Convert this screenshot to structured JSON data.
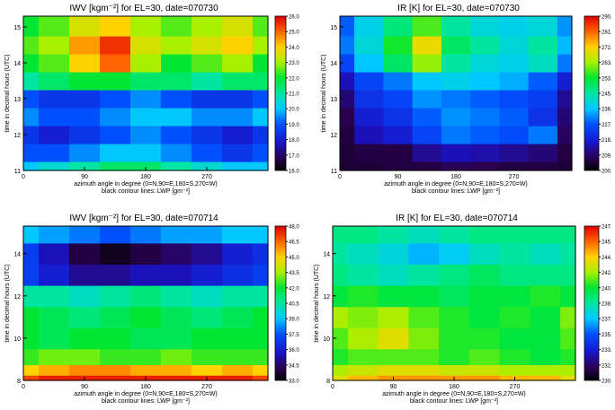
{
  "charts": [
    {
      "title": "IWV [kgm⁻²] for EL=30, date=070730",
      "xlabel": "azimuth angle in degree (0=N,90=E,180=S,270=W)",
      "xlabel2": "black contour lines: LWP [gm⁻²]",
      "ylabel": "time in decimal hours (UTC)",
      "xticks": [
        "0",
        "90",
        "180",
        "270"
      ],
      "yticks": [
        "11",
        "12",
        "13",
        "14",
        "15"
      ],
      "colorbar_ticks": [
        "16.0",
        "17.0",
        "18.0",
        "19.0",
        "20.0",
        "21.0",
        "22.0",
        "23.0",
        "24.0",
        "25.0",
        "26.0"
      ]
    },
    {
      "title": "IR [K] for EL=30, date=070730",
      "xlabel": "azimuth angle in degree (0=N,90=E,180=S,270=W)",
      "xlabel2": "black contour lines: LWP [gm⁻²]",
      "ylabel": "time in decimal hours (UTC)",
      "xticks": [
        "0",
        "90",
        "180",
        "270"
      ],
      "yticks": [
        "11",
        "12",
        "13",
        "14",
        "15"
      ],
      "colorbar_ticks": [
        "200.",
        "209.",
        "218.",
        "227.",
        "236.",
        "245.",
        "253.",
        "263.",
        "272.",
        "281.",
        "290."
      ]
    },
    {
      "title": "IWV [kgm⁻²] for EL=30, date=070714",
      "xlabel": "azimuth angle in degree (0=N,90=E,180=S,270=W)",
      "xlabel2": "black contour lines: LWP [gm⁻²]",
      "ylabel": "time in decimal hours (UTC)",
      "xticks": [
        "0",
        "90",
        "180",
        "270"
      ],
      "yticks": [
        "8",
        "10",
        "12",
        "14"
      ],
      "colorbar_ticks": [
        "33.0",
        "34.5",
        "36.0",
        "37.5",
        "39.0",
        "40.5",
        "42.0",
        "43.5",
        "45.0",
        "46.5",
        "48.0"
      ]
    },
    {
      "title": "IR [K] for EL=30, date=070714",
      "xlabel": "azimuth angle in degree (0=N,90=E,180=S,270=W)",
      "xlabel2": "black contour lines: LWP [gm⁻²]",
      "ylabel": "time in decimal hours (UTC)",
      "xticks": [
        "0",
        "90",
        "180",
        "270"
      ],
      "yticks": [
        "8",
        "10",
        "12",
        "14"
      ],
      "colorbar_ticks": [
        "230.",
        "232.",
        "233.",
        "235.",
        "237.",
        "238.",
        "240.",
        "242.",
        "244.",
        "245.",
        "247."
      ]
    }
  ],
  "chart_data": [
    {
      "type": "heatmap",
      "title": "IWV [kgm⁻²] for EL=30, date=070730",
      "xlabel": "azimuth angle in degree (0=N,90=E,180=S,270=W)",
      "ylabel": "time in decimal hours (UTC)",
      "xlim": [
        0,
        360
      ],
      "ylim": [
        11,
        15.3
      ],
      "colorbar_range": [
        16.0,
        26.0
      ],
      "x": [
        0,
        45,
        90,
        135,
        180,
        225,
        270,
        315,
        360
      ],
      "y": [
        11,
        11.5,
        12,
        12.5,
        13,
        13.5,
        14,
        14.5,
        15
      ],
      "z": [
        [
          20,
          20.5,
          21,
          21.5,
          21.5,
          21,
          20.5,
          20,
          20
        ],
        [
          19,
          19,
          19.5,
          20,
          20,
          19.5,
          19,
          18.5,
          19
        ],
        [
          18.5,
          18,
          18.5,
          19,
          19.5,
          19,
          18.5,
          18,
          18.5
        ],
        [
          19.5,
          19,
          19,
          19.5,
          20,
          20,
          19.5,
          19.5,
          20
        ],
        [
          19,
          18.5,
          18.5,
          19,
          19.5,
          19,
          18.5,
          18.5,
          19
        ],
        [
          21,
          21.5,
          22,
          22,
          21.5,
          21.5,
          21,
          21.5,
          21.5
        ],
        [
          22,
          22.5,
          24,
          25,
          23,
          22,
          22.5,
          23,
          22
        ],
        [
          22.5,
          23,
          24.5,
          25.5,
          23.5,
          23,
          23.5,
          24,
          23
        ],
        [
          22,
          22.5,
          23.5,
          24,
          23,
          22.5,
          23,
          23.5,
          22.5
        ]
      ]
    },
    {
      "type": "heatmap",
      "title": "IR [K] for EL=30, date=070730",
      "xlabel": "azimuth angle in degree (0=N,90=E,180=S,270=W)",
      "ylabel": "time in decimal hours (UTC)",
      "xlim": [
        0,
        360
      ],
      "ylim": [
        11,
        15.3
      ],
      "colorbar_range": [
        200,
        290
      ],
      "x": [
        0,
        45,
        90,
        135,
        180,
        225,
        270,
        315,
        360
      ],
      "y": [
        11,
        11.5,
        12,
        12.5,
        13,
        13.5,
        14,
        14.5,
        15
      ],
      "z": [
        [
          205,
          205,
          206,
          206,
          208,
          207,
          206,
          206,
          205
        ],
        [
          205,
          206,
          206,
          212,
          215,
          214,
          212,
          210,
          206
        ],
        [
          206,
          215,
          218,
          225,
          230,
          228,
          226,
          230,
          208
        ],
        [
          207,
          218,
          222,
          228,
          232,
          230,
          228,
          222,
          210
        ],
        [
          210,
          222,
          225,
          232,
          230,
          228,
          226,
          224,
          212
        ],
        [
          215,
          225,
          230,
          236,
          238,
          236,
          234,
          228,
          218
        ],
        [
          225,
          236,
          250,
          262,
          245,
          240,
          238,
          242,
          230
        ],
        [
          230,
          240,
          255,
          270,
          250,
          245,
          240,
          245,
          235
        ],
        [
          228,
          238,
          248,
          258,
          245,
          240,
          238,
          240,
          232
        ]
      ]
    },
    {
      "type": "heatmap",
      "title": "IWV [kgm⁻²] for EL=30, date=070714",
      "xlabel": "azimuth angle in degree (0=N,90=E,180=S,270=W)",
      "ylabel": "time in decimal hours (UTC)",
      "xlim": [
        0,
        360
      ],
      "ylim": [
        8,
        15.3
      ],
      "colorbar_range": [
        33.0,
        48.0
      ],
      "x": [
        0,
        45,
        90,
        135,
        180,
        225,
        270,
        315,
        360
      ],
      "y": [
        8,
        8.5,
        9,
        10,
        11,
        12,
        13,
        14,
        15
      ],
      "z": [
        [
          47,
          47.5,
          47.5,
          47.5,
          47.5,
          47.5,
          47.5,
          47.5,
          47
        ],
        [
          45,
          45.5,
          46,
          46,
          45.5,
          45.5,
          45,
          45.5,
          45
        ],
        [
          42.5,
          43,
          43,
          42.5,
          42.5,
          43,
          42.5,
          42.5,
          42.5
        ],
        [
          42,
          41.5,
          42,
          42,
          41.5,
          41.5,
          42,
          42,
          42
        ],
        [
          42,
          41.5,
          41,
          41.5,
          42,
          41.5,
          41,
          41.5,
          42
        ],
        [
          40.5,
          40.5,
          40,
          40.5,
          41,
          40.5,
          40,
          40.5,
          40.5
        ],
        [
          37,
          36,
          35,
          35,
          35.5,
          35.5,
          36,
          36.5,
          37
        ],
        [
          37,
          35.5,
          34,
          33.5,
          34,
          34.5,
          35,
          36,
          36.5
        ],
        [
          39,
          38.5,
          38,
          37.5,
          38,
          38.5,
          38.5,
          39,
          39
        ]
      ]
    },
    {
      "type": "heatmap",
      "title": "IR [K] for EL=30, date=070714",
      "xlabel": "azimuth angle in degree (0=N,90=E,180=S,270=W)",
      "ylabel": "time in decimal hours (UTC)",
      "xlim": [
        0,
        360
      ],
      "ylim": [
        8,
        15.3
      ],
      "colorbar_range": [
        230,
        247
      ],
      "x": [
        0,
        45,
        90,
        135,
        180,
        225,
        270,
        315,
        360
      ],
      "y": [
        8,
        8.5,
        9,
        10,
        11,
        12,
        13,
        14,
        15
      ],
      "z": [
        [
          243,
          244,
          244.5,
          244.5,
          244.5,
          244.5,
          244,
          244,
          243
        ],
        [
          242,
          242.5,
          243,
          243,
          242.5,
          242.5,
          242,
          242,
          242
        ],
        [
          240.5,
          241,
          241,
          241,
          240.5,
          241,
          240.5,
          240,
          240.5
        ],
        [
          241,
          242,
          243,
          241.5,
          240.5,
          240.5,
          240,
          240,
          241
        ],
        [
          242,
          241.5,
          242,
          241,
          240.5,
          240,
          240.5,
          240,
          241.5
        ],
        [
          240,
          240.5,
          240,
          240,
          239.5,
          240,
          240,
          240.5,
          240
        ],
        [
          239,
          238.5,
          238,
          238.5,
          239,
          239.5,
          239,
          239,
          239
        ],
        [
          238.5,
          238,
          237.5,
          236.5,
          237,
          238,
          238.5,
          238,
          238.5
        ],
        [
          239,
          239,
          238.5,
          238,
          238.5,
          239,
          239,
          239,
          239
        ]
      ]
    }
  ]
}
